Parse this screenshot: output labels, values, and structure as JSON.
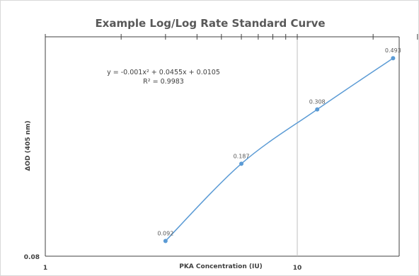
{
  "chart_data": {
    "type": "scatter",
    "title": "Example Log/Log Rate Standard Curve",
    "xlabel": "PKA Concentration (IU)",
    "ylabel": "ΔOD (405 nm)",
    "x_scale": "log",
    "y_scale": "log",
    "xlim": [
      1,
      40
    ],
    "ylim": [
      0.08,
      0.6
    ],
    "x_ticks": [
      {
        "value": 1,
        "label": "1"
      },
      {
        "value": 10,
        "label": "10"
      }
    ],
    "y_ticks": [
      {
        "value": 0.08,
        "label": "0.08"
      }
    ],
    "points": [
      {
        "x": 3.0,
        "y": 0.092,
        "label": "0.092"
      },
      {
        "x": 6.0,
        "y": 0.187,
        "label": "0.187"
      },
      {
        "x": 12.0,
        "y": 0.308,
        "label": "0.308"
      },
      {
        "x": 24.0,
        "y": 0.493,
        "label": "0.493"
      }
    ],
    "trendline": {
      "type": "polynomial",
      "equation": "y = -0.001x² + 0.0455x + 0.0105",
      "r_squared": "R² = 0.9983"
    },
    "grid": "vertical major",
    "legend": "none",
    "colors": {
      "series": "#5b9bd5",
      "frame": "#404040",
      "gridline": "#bfbfbf"
    }
  }
}
